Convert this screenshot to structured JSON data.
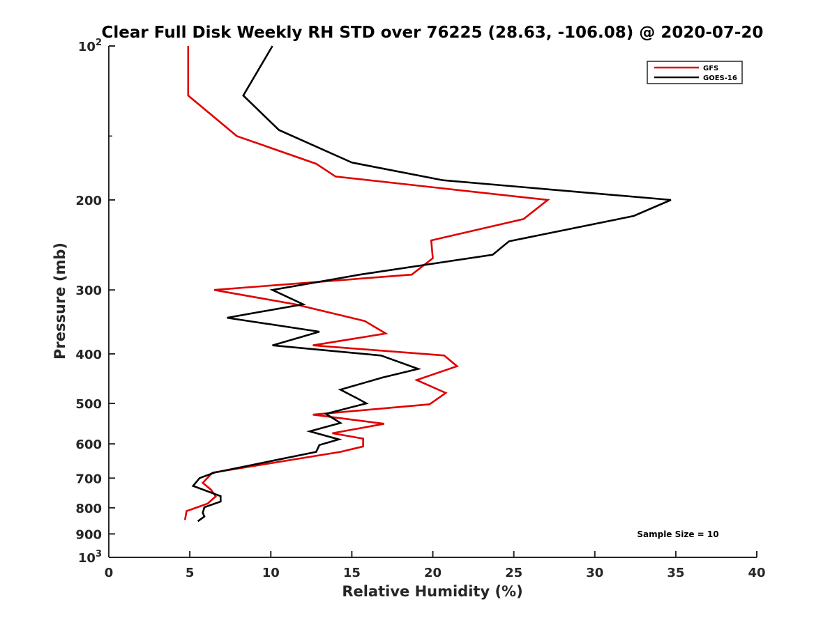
{
  "chart_data": {
    "type": "line",
    "title": "Clear Full Disk Weekly RH STD over 76225 (28.63, -106.08) @ 2020-07-20",
    "xlabel": "Relative Humidity (%)",
    "ylabel": "Pressure (mb)",
    "xlim": [
      0,
      40
    ],
    "ylim": [
      100,
      1000
    ],
    "y_scale": "log",
    "y_reversed": true,
    "x_ticks": [
      {
        "value": 0,
        "label": "0"
      },
      {
        "value": 5,
        "label": "5"
      },
      {
        "value": 10,
        "label": "10"
      },
      {
        "value": 15,
        "label": "15"
      },
      {
        "value": 20,
        "label": "20"
      },
      {
        "value": 25,
        "label": "25"
      },
      {
        "value": 30,
        "label": "30"
      },
      {
        "value": 35,
        "label": "35"
      },
      {
        "value": 40,
        "label": "40"
      }
    ],
    "y_ticks": [
      {
        "value": 100,
        "label": "10",
        "sup": "2"
      },
      {
        "value": 200,
        "label": "200",
        "sup": ""
      },
      {
        "value": 300,
        "label": "300",
        "sup": ""
      },
      {
        "value": 400,
        "label": "400",
        "sup": ""
      },
      {
        "value": 500,
        "label": "500",
        "sup": ""
      },
      {
        "value": 600,
        "label": "600",
        "sup": ""
      },
      {
        "value": 700,
        "label": "700",
        "sup": ""
      },
      {
        "value": 800,
        "label": "800",
        "sup": ""
      },
      {
        "value": 900,
        "label": "900",
        "sup": ""
      },
      {
        "value": 1000,
        "label": "10",
        "sup": "3"
      }
    ],
    "legend_position": "top-right",
    "grid": false,
    "annotation": "Sample Size = 10",
    "series": [
      {
        "name": "GFS",
        "color": "#e00000",
        "points": [
          {
            "x": 4.9,
            "y": 100
          },
          {
            "x": 4.9,
            "y": 125
          },
          {
            "x": 7.9,
            "y": 150
          },
          {
            "x": 12.8,
            "y": 170
          },
          {
            "x": 14.0,
            "y": 180
          },
          {
            "x": 27.1,
            "y": 200
          },
          {
            "x": 25.6,
            "y": 218
          },
          {
            "x": 19.9,
            "y": 240
          },
          {
            "x": 20.0,
            "y": 260
          },
          {
            "x": 18.7,
            "y": 280
          },
          {
            "x": 6.5,
            "y": 300
          },
          {
            "x": 11.5,
            "y": 320
          },
          {
            "x": 15.8,
            "y": 345
          },
          {
            "x": 17.1,
            "y": 365
          },
          {
            "x": 12.6,
            "y": 385
          },
          {
            "x": 20.7,
            "y": 403
          },
          {
            "x": 21.5,
            "y": 423
          },
          {
            "x": 19.0,
            "y": 450
          },
          {
            "x": 20.8,
            "y": 477
          },
          {
            "x": 19.8,
            "y": 502
          },
          {
            "x": 12.6,
            "y": 526
          },
          {
            "x": 17.0,
            "y": 548
          },
          {
            "x": 13.8,
            "y": 572
          },
          {
            "x": 15.7,
            "y": 586
          },
          {
            "x": 15.7,
            "y": 607
          },
          {
            "x": 14.3,
            "y": 622
          },
          {
            "x": 6.4,
            "y": 683
          },
          {
            "x": 5.8,
            "y": 715
          },
          {
            "x": 6.3,
            "y": 737
          },
          {
            "x": 6.6,
            "y": 760
          },
          {
            "x": 6.1,
            "y": 785
          },
          {
            "x": 4.8,
            "y": 812
          },
          {
            "x": 4.7,
            "y": 845
          }
        ]
      },
      {
        "name": "GOES-16",
        "color": "#000000",
        "points": [
          {
            "x": 10.1,
            "y": 100
          },
          {
            "x": 8.3,
            "y": 125
          },
          {
            "x": 10.5,
            "y": 146
          },
          {
            "x": 15.0,
            "y": 169
          },
          {
            "x": 20.6,
            "y": 183
          },
          {
            "x": 34.7,
            "y": 200
          },
          {
            "x": 32.4,
            "y": 215
          },
          {
            "x": 24.7,
            "y": 241
          },
          {
            "x": 23.7,
            "y": 256
          },
          {
            "x": 15.5,
            "y": 280
          },
          {
            "x": 10.1,
            "y": 300
          },
          {
            "x": 12.0,
            "y": 320
          },
          {
            "x": 7.3,
            "y": 340
          },
          {
            "x": 13.0,
            "y": 362
          },
          {
            "x": 10.1,
            "y": 385
          },
          {
            "x": 16.8,
            "y": 403
          },
          {
            "x": 19.1,
            "y": 428
          },
          {
            "x": 16.9,
            "y": 445
          },
          {
            "x": 14.3,
            "y": 470
          },
          {
            "x": 15.4,
            "y": 490
          },
          {
            "x": 15.9,
            "y": 500
          },
          {
            "x": 13.4,
            "y": 524
          },
          {
            "x": 14.3,
            "y": 546
          },
          {
            "x": 12.4,
            "y": 567
          },
          {
            "x": 14.2,
            "y": 588
          },
          {
            "x": 13.0,
            "y": 603
          },
          {
            "x": 12.8,
            "y": 622
          },
          {
            "x": 6.5,
            "y": 683
          },
          {
            "x": 5.6,
            "y": 700
          },
          {
            "x": 5.2,
            "y": 725
          },
          {
            "x": 6.9,
            "y": 759
          },
          {
            "x": 6.9,
            "y": 778
          },
          {
            "x": 5.9,
            "y": 798
          },
          {
            "x": 5.8,
            "y": 818
          },
          {
            "x": 5.9,
            "y": 832
          },
          {
            "x": 5.5,
            "y": 850
          }
        ]
      }
    ]
  }
}
